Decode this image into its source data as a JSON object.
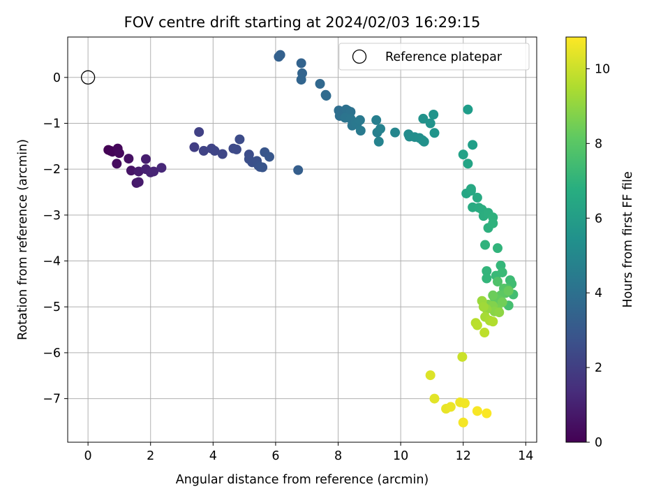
{
  "chart_data": {
    "type": "scatter",
    "title": "FOV centre drift starting at 2024/02/03 16:29:15",
    "xlabel": "Angular distance from reference (arcmin)",
    "ylabel": "Rotation from reference (arcmin)",
    "xlim": [
      -0.65,
      14.35
    ],
    "ylim": [
      -7.95,
      0.88
    ],
    "xticks": [
      0,
      2,
      4,
      6,
      8,
      10,
      12,
      14
    ],
    "yticks": [
      0,
      -1,
      -2,
      -3,
      -4,
      -5,
      -6,
      -7
    ],
    "grid": true,
    "legend": {
      "position": "top-right",
      "entries": [
        "Reference platepar"
      ]
    },
    "reference_point": {
      "x": 0,
      "y": 0
    },
    "colorbar": {
      "label": "Hours from first FF file",
      "min": 0,
      "max": 10.85,
      "ticks": [
        0,
        2,
        4,
        6,
        8,
        10
      ],
      "colormap": "viridis"
    },
    "points": [
      {
        "x": 0.65,
        "y": -1.58,
        "t": 0.0
      },
      {
        "x": 0.72,
        "y": -1.6,
        "t": 0.05
      },
      {
        "x": 0.78,
        "y": -1.62,
        "t": 0.1
      },
      {
        "x": 0.95,
        "y": -1.55,
        "t": 0.2
      },
      {
        "x": 1.0,
        "y": -1.65,
        "t": 0.25
      },
      {
        "x": 0.92,
        "y": -1.88,
        "t": 0.35
      },
      {
        "x": 1.3,
        "y": -1.77,
        "t": 0.5
      },
      {
        "x": 1.38,
        "y": -2.03,
        "t": 0.6
      },
      {
        "x": 1.55,
        "y": -2.3,
        "t": 0.7
      },
      {
        "x": 1.62,
        "y": -2.28,
        "t": 0.8
      },
      {
        "x": 1.62,
        "y": -2.05,
        "t": 0.85
      },
      {
        "x": 1.85,
        "y": -1.78,
        "t": 0.9
      },
      {
        "x": 1.85,
        "y": -2.0,
        "t": 1.0
      },
      {
        "x": 2.0,
        "y": -2.07,
        "t": 1.05
      },
      {
        "x": 2.1,
        "y": -2.05,
        "t": 1.1
      },
      {
        "x": 2.35,
        "y": -1.97,
        "t": 1.2
      },
      {
        "x": 3.4,
        "y": -1.52,
        "t": 2.0
      },
      {
        "x": 3.55,
        "y": -1.19,
        "t": 2.1
      },
      {
        "x": 3.7,
        "y": -1.6,
        "t": 2.15
      },
      {
        "x": 3.95,
        "y": -1.55,
        "t": 2.2
      },
      {
        "x": 4.05,
        "y": -1.6,
        "t": 2.25
      },
      {
        "x": 4.3,
        "y": -1.67,
        "t": 2.3
      },
      {
        "x": 4.65,
        "y": -1.55,
        "t": 2.4
      },
      {
        "x": 4.75,
        "y": -1.57,
        "t": 2.45
      },
      {
        "x": 4.85,
        "y": -1.35,
        "t": 2.5
      },
      {
        "x": 5.15,
        "y": -1.68,
        "t": 2.55
      },
      {
        "x": 5.15,
        "y": -1.78,
        "t": 2.6
      },
      {
        "x": 5.25,
        "y": -1.85,
        "t": 2.65
      },
      {
        "x": 5.4,
        "y": -1.82,
        "t": 2.7
      },
      {
        "x": 5.45,
        "y": -1.92,
        "t": 2.75
      },
      {
        "x": 5.5,
        "y": -1.95,
        "t": 2.8
      },
      {
        "x": 5.58,
        "y": -1.96,
        "t": 2.85
      },
      {
        "x": 5.65,
        "y": -1.63,
        "t": 2.9
      },
      {
        "x": 5.8,
        "y": -1.73,
        "t": 2.95
      },
      {
        "x": 6.72,
        "y": -2.02,
        "t": 3.2
      },
      {
        "x": 6.1,
        "y": 0.45,
        "t": 3.3
      },
      {
        "x": 6.15,
        "y": 0.49,
        "t": 3.35
      },
      {
        "x": 6.82,
        "y": 0.31,
        "t": 3.4
      },
      {
        "x": 6.85,
        "y": 0.09,
        "t": 3.45
      },
      {
        "x": 6.82,
        "y": -0.05,
        "t": 3.5
      },
      {
        "x": 7.42,
        "y": -0.14,
        "t": 3.6
      },
      {
        "x": 7.6,
        "y": -0.38,
        "t": 3.7
      },
      {
        "x": 7.62,
        "y": -0.4,
        "t": 3.75
      },
      {
        "x": 8.02,
        "y": -0.72,
        "t": 3.9
      },
      {
        "x": 8.05,
        "y": -0.84,
        "t": 3.95
      },
      {
        "x": 8.25,
        "y": -0.7,
        "t": 4.0
      },
      {
        "x": 8.3,
        "y": -0.72,
        "t": 4.05
      },
      {
        "x": 8.4,
        "y": -0.75,
        "t": 4.1
      },
      {
        "x": 8.22,
        "y": -0.88,
        "t": 4.15
      },
      {
        "x": 8.4,
        "y": -0.9,
        "t": 4.2
      },
      {
        "x": 8.45,
        "y": -1.05,
        "t": 4.25
      },
      {
        "x": 8.55,
        "y": -0.98,
        "t": 4.3
      },
      {
        "x": 8.6,
        "y": -1.02,
        "t": 4.35
      },
      {
        "x": 8.7,
        "y": -0.93,
        "t": 4.4
      },
      {
        "x": 8.72,
        "y": -1.16,
        "t": 4.45
      },
      {
        "x": 9.22,
        "y": -0.93,
        "t": 4.7
      },
      {
        "x": 9.25,
        "y": -1.2,
        "t": 4.75
      },
      {
        "x": 9.35,
        "y": -1.12,
        "t": 4.8
      },
      {
        "x": 9.3,
        "y": -1.4,
        "t": 4.85
      },
      {
        "x": 9.82,
        "y": -1.2,
        "t": 5.0
      },
      {
        "x": 10.25,
        "y": -1.24,
        "t": 5.2
      },
      {
        "x": 10.28,
        "y": -1.29,
        "t": 5.25
      },
      {
        "x": 10.45,
        "y": -1.3,
        "t": 5.3
      },
      {
        "x": 10.6,
        "y": -1.32,
        "t": 5.35
      },
      {
        "x": 10.7,
        "y": -1.37,
        "t": 5.4
      },
      {
        "x": 10.75,
        "y": -1.4,
        "t": 5.45
      },
      {
        "x": 10.72,
        "y": -0.9,
        "t": 5.5
      },
      {
        "x": 10.95,
        "y": -1.0,
        "t": 5.55
      },
      {
        "x": 11.05,
        "y": -0.81,
        "t": 5.6
      },
      {
        "x": 11.08,
        "y": -1.21,
        "t": 5.65
      },
      {
        "x": 12.15,
        "y": -0.7,
        "t": 6.0
      },
      {
        "x": 12.3,
        "y": -1.47,
        "t": 6.1
      },
      {
        "x": 12.0,
        "y": -1.68,
        "t": 6.2
      },
      {
        "x": 12.15,
        "y": -1.88,
        "t": 6.3
      },
      {
        "x": 12.1,
        "y": -2.53,
        "t": 6.4
      },
      {
        "x": 12.25,
        "y": -2.47,
        "t": 6.45
      },
      {
        "x": 12.25,
        "y": -2.43,
        "t": 6.5
      },
      {
        "x": 12.45,
        "y": -2.62,
        "t": 6.55
      },
      {
        "x": 12.3,
        "y": -2.83,
        "t": 6.6
      },
      {
        "x": 12.5,
        "y": -2.84,
        "t": 6.65
      },
      {
        "x": 12.6,
        "y": -2.88,
        "t": 6.7
      },
      {
        "x": 12.65,
        "y": -3.02,
        "t": 6.75
      },
      {
        "x": 12.8,
        "y": -2.95,
        "t": 6.8
      },
      {
        "x": 12.8,
        "y": -3.28,
        "t": 6.85
      },
      {
        "x": 12.95,
        "y": -3.05,
        "t": 6.9
      },
      {
        "x": 12.95,
        "y": -3.18,
        "t": 6.95
      },
      {
        "x": 12.7,
        "y": -3.65,
        "t": 7.0
      },
      {
        "x": 13.1,
        "y": -3.72,
        "t": 7.05
      },
      {
        "x": 12.75,
        "y": -4.22,
        "t": 7.1
      },
      {
        "x": 12.75,
        "y": -4.38,
        "t": 7.15
      },
      {
        "x": 13.2,
        "y": -4.1,
        "t": 7.2
      },
      {
        "x": 13.05,
        "y": -4.32,
        "t": 7.3
      },
      {
        "x": 13.25,
        "y": -4.25,
        "t": 7.35
      },
      {
        "x": 13.5,
        "y": -4.42,
        "t": 7.4
      },
      {
        "x": 13.55,
        "y": -4.5,
        "t": 7.5
      },
      {
        "x": 13.6,
        "y": -4.73,
        "t": 7.55
      },
      {
        "x": 13.45,
        "y": -4.97,
        "t": 7.6
      },
      {
        "x": 13.4,
        "y": -4.6,
        "t": 7.7
      },
      {
        "x": 13.1,
        "y": -4.45,
        "t": 7.8
      },
      {
        "x": 13.3,
        "y": -4.6,
        "t": 7.9
      },
      {
        "x": 13.35,
        "y": -4.7,
        "t": 8.0
      },
      {
        "x": 13.2,
        "y": -4.75,
        "t": 8.1
      },
      {
        "x": 13.0,
        "y": -4.8,
        "t": 8.15
      },
      {
        "x": 13.15,
        "y": -4.85,
        "t": 8.2
      },
      {
        "x": 13.45,
        "y": -4.65,
        "t": 8.3
      },
      {
        "x": 12.95,
        "y": -4.75,
        "t": 8.4
      },
      {
        "x": 13.25,
        "y": -4.9,
        "t": 8.5
      },
      {
        "x": 13.1,
        "y": -5.05,
        "t": 8.6
      },
      {
        "x": 12.8,
        "y": -4.95,
        "t": 8.7
      },
      {
        "x": 12.95,
        "y": -4.98,
        "t": 8.8
      },
      {
        "x": 13.0,
        "y": -5.1,
        "t": 8.9
      },
      {
        "x": 13.15,
        "y": -5.12,
        "t": 9.0
      },
      {
        "x": 12.75,
        "y": -5.05,
        "t": 9.1
      },
      {
        "x": 12.6,
        "y": -4.87,
        "t": 9.2
      },
      {
        "x": 12.65,
        "y": -5.0,
        "t": 9.3
      },
      {
        "x": 12.7,
        "y": -5.22,
        "t": 9.4
      },
      {
        "x": 12.85,
        "y": -5.3,
        "t": 9.5
      },
      {
        "x": 12.95,
        "y": -5.32,
        "t": 9.6
      },
      {
        "x": 12.4,
        "y": -5.35,
        "t": 9.7
      },
      {
        "x": 12.45,
        "y": -5.4,
        "t": 9.75
      },
      {
        "x": 12.68,
        "y": -5.56,
        "t": 9.8
      },
      {
        "x": 11.97,
        "y": -6.09,
        "t": 10.0
      },
      {
        "x": 10.95,
        "y": -6.49,
        "t": 10.3
      },
      {
        "x": 11.08,
        "y": -7.0,
        "t": 10.4
      },
      {
        "x": 11.45,
        "y": -7.22,
        "t": 10.5
      },
      {
        "x": 11.6,
        "y": -7.18,
        "t": 10.55
      },
      {
        "x": 11.9,
        "y": -7.08,
        "t": 10.6
      },
      {
        "x": 12.05,
        "y": -7.1,
        "t": 10.65
      },
      {
        "x": 12.0,
        "y": -7.52,
        "t": 10.7
      },
      {
        "x": 12.45,
        "y": -7.27,
        "t": 10.75
      },
      {
        "x": 12.75,
        "y": -7.32,
        "t": 10.8
      }
    ]
  }
}
